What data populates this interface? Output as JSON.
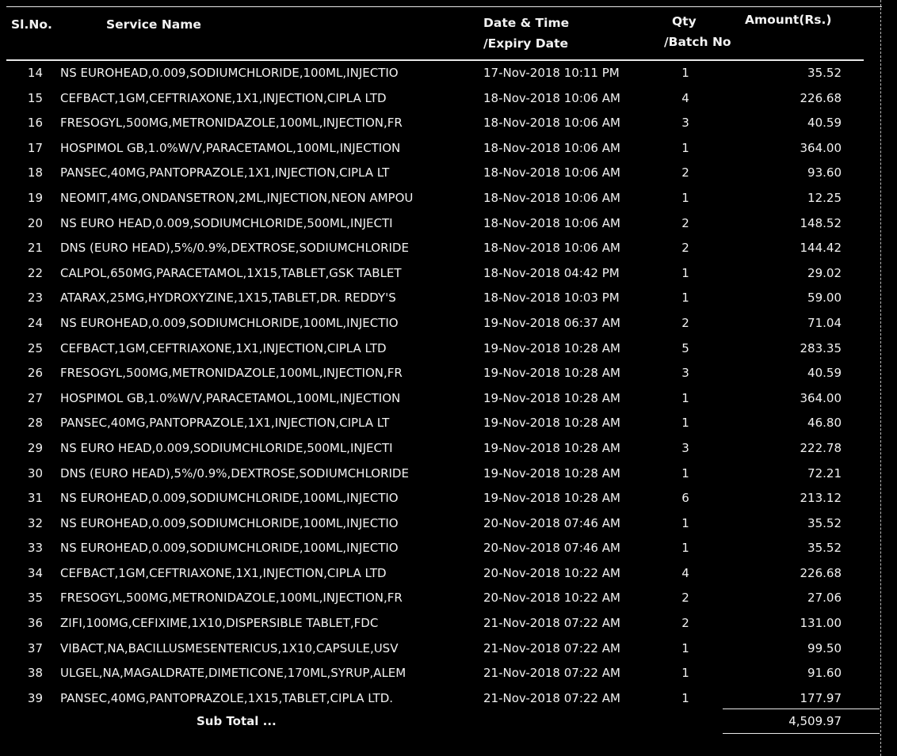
{
  "header": {
    "sl_no": "Sl.No.",
    "service_name": "Service Name",
    "date_time": "Date & Time",
    "expiry_date": "/Expiry Date",
    "qty": "Qty",
    "batch_no": "/Batch No",
    "amount": "Amount(Rs.)"
  },
  "rows": [
    {
      "sl": "14",
      "name": "NS EUROHEAD,0.009,SODIUMCHLORIDE,100ML,INJECTIO",
      "date": "17-Nov-2018 10:11 PM",
      "qty": "1",
      "amount": "35.52"
    },
    {
      "sl": "15",
      "name": "CEFBACT,1GM,CEFTRIAXONE,1X1,INJECTION,CIPLA LTD",
      "date": "18-Nov-2018 10:06 AM",
      "qty": "4",
      "amount": "226.68"
    },
    {
      "sl": "16",
      "name": "FRESOGYL,500MG,METRONIDAZOLE,100ML,INJECTION,FR",
      "date": "18-Nov-2018 10:06 AM",
      "qty": "3",
      "amount": "40.59"
    },
    {
      "sl": "17",
      "name": "HOSPIMOL GB,1.0%W/V,PARACETAMOL,100ML,INJECTION",
      "date": "18-Nov-2018 10:06 AM",
      "qty": "1",
      "amount": "364.00"
    },
    {
      "sl": "18",
      "name": "PANSEC,40MG,PANTOPRAZOLE,1X1,INJECTION,CIPLA LT",
      "date": "18-Nov-2018 10:06 AM",
      "qty": "2",
      "amount": "93.60"
    },
    {
      "sl": "19",
      "name": "NEOMIT,4MG,ONDANSETRON,2ML,INJECTION,NEON AMPOU",
      "date": "18-Nov-2018 10:06 AM",
      "qty": "1",
      "amount": "12.25"
    },
    {
      "sl": "20",
      "name": "NS EURO HEAD,0.009,SODIUMCHLORIDE,500ML,INJECTI",
      "date": "18-Nov-2018 10:06 AM",
      "qty": "2",
      "amount": "148.52"
    },
    {
      "sl": "21",
      "name": "DNS (EURO HEAD),5%/0.9%,DEXTROSE,SODIUMCHLORIDE",
      "date": "18-Nov-2018 10:06 AM",
      "qty": "2",
      "amount": "144.42"
    },
    {
      "sl": "22",
      "name": "CALPOL,650MG,PARACETAMOL,1X15,TABLET,GSK TABLET",
      "date": "18-Nov-2018 04:42 PM",
      "qty": "1",
      "amount": "29.02"
    },
    {
      "sl": "23",
      "name": "ATARAX,25MG,HYDROXYZINE,1X15,TABLET,DR. REDDY'S",
      "date": "18-Nov-2018 10:03 PM",
      "qty": "1",
      "amount": "59.00"
    },
    {
      "sl": "24",
      "name": "NS EUROHEAD,0.009,SODIUMCHLORIDE,100ML,INJECTIO",
      "date": "19-Nov-2018 06:37 AM",
      "qty": "2",
      "amount": "71.04"
    },
    {
      "sl": "25",
      "name": "CEFBACT,1GM,CEFTRIAXONE,1X1,INJECTION,CIPLA LTD",
      "date": "19-Nov-2018 10:28 AM",
      "qty": "5",
      "amount": "283.35"
    },
    {
      "sl": "26",
      "name": "FRESOGYL,500MG,METRONIDAZOLE,100ML,INJECTION,FR",
      "date": "19-Nov-2018 10:28 AM",
      "qty": "3",
      "amount": "40.59"
    },
    {
      "sl": "27",
      "name": "HOSPIMOL GB,1.0%W/V,PARACETAMOL,100ML,INJECTION",
      "date": "19-Nov-2018 10:28 AM",
      "qty": "1",
      "amount": "364.00"
    },
    {
      "sl": "28",
      "name": "PANSEC,40MG,PANTOPRAZOLE,1X1,INJECTION,CIPLA LT",
      "date": "19-Nov-2018 10:28 AM",
      "qty": "1",
      "amount": "46.80"
    },
    {
      "sl": "29",
      "name": "NS EURO HEAD,0.009,SODIUMCHLORIDE,500ML,INJECTI",
      "date": "19-Nov-2018 10:28 AM",
      "qty": "3",
      "amount": "222.78"
    },
    {
      "sl": "30",
      "name": "DNS (EURO HEAD),5%/0.9%,DEXTROSE,SODIUMCHLORIDE",
      "date": "19-Nov-2018 10:28 AM",
      "qty": "1",
      "amount": "72.21"
    },
    {
      "sl": "31",
      "name": "NS EUROHEAD,0.009,SODIUMCHLORIDE,100ML,INJECTIO",
      "date": "19-Nov-2018 10:28 AM",
      "qty": "6",
      "amount": "213.12"
    },
    {
      "sl": "32",
      "name": "NS EUROHEAD,0.009,SODIUMCHLORIDE,100ML,INJECTIO",
      "date": "20-Nov-2018 07:46 AM",
      "qty": "1",
      "amount": "35.52"
    },
    {
      "sl": "33",
      "name": "NS EUROHEAD,0.009,SODIUMCHLORIDE,100ML,INJECTIO",
      "date": "20-Nov-2018 07:46 AM",
      "qty": "1",
      "amount": "35.52"
    },
    {
      "sl": "34",
      "name": "CEFBACT,1GM,CEFTRIAXONE,1X1,INJECTION,CIPLA LTD",
      "date": "20-Nov-2018 10:22 AM",
      "qty": "4",
      "amount": "226.68"
    },
    {
      "sl": "35",
      "name": "FRESOGYL,500MG,METRONIDAZOLE,100ML,INJECTION,FR",
      "date": "20-Nov-2018 10:22 AM",
      "qty": "2",
      "amount": "27.06"
    },
    {
      "sl": "36",
      "name": "ZIFI,100MG,CEFIXIME,1X10,DISPERSIBLE TABLET,FDC",
      "date": "21-Nov-2018 07:22 AM",
      "qty": "2",
      "amount": "131.00"
    },
    {
      "sl": "37",
      "name": "VIBACT,NA,BACILLUSMESENTERICUS,1X10,CAPSULE,USV",
      "date": "21-Nov-2018 07:22 AM",
      "qty": "1",
      "amount": "99.50"
    },
    {
      "sl": "38",
      "name": "ULGEL,NA,MAGALDRATE,DIMETICONE,170ML,SYRUP,ALEM",
      "date": "21-Nov-2018 07:22 AM",
      "qty": "1",
      "amount": "91.60"
    },
    {
      "sl": "39",
      "name": "PANSEC,40MG,PANTOPRAZOLE,1X15,TABLET,CIPLA LTD.",
      "date": "21-Nov-2018 07:22 AM",
      "qty": "1",
      "amount": "177.97"
    }
  ],
  "subtotal": {
    "label": "Sub Total ...",
    "value": "4,509.97"
  }
}
